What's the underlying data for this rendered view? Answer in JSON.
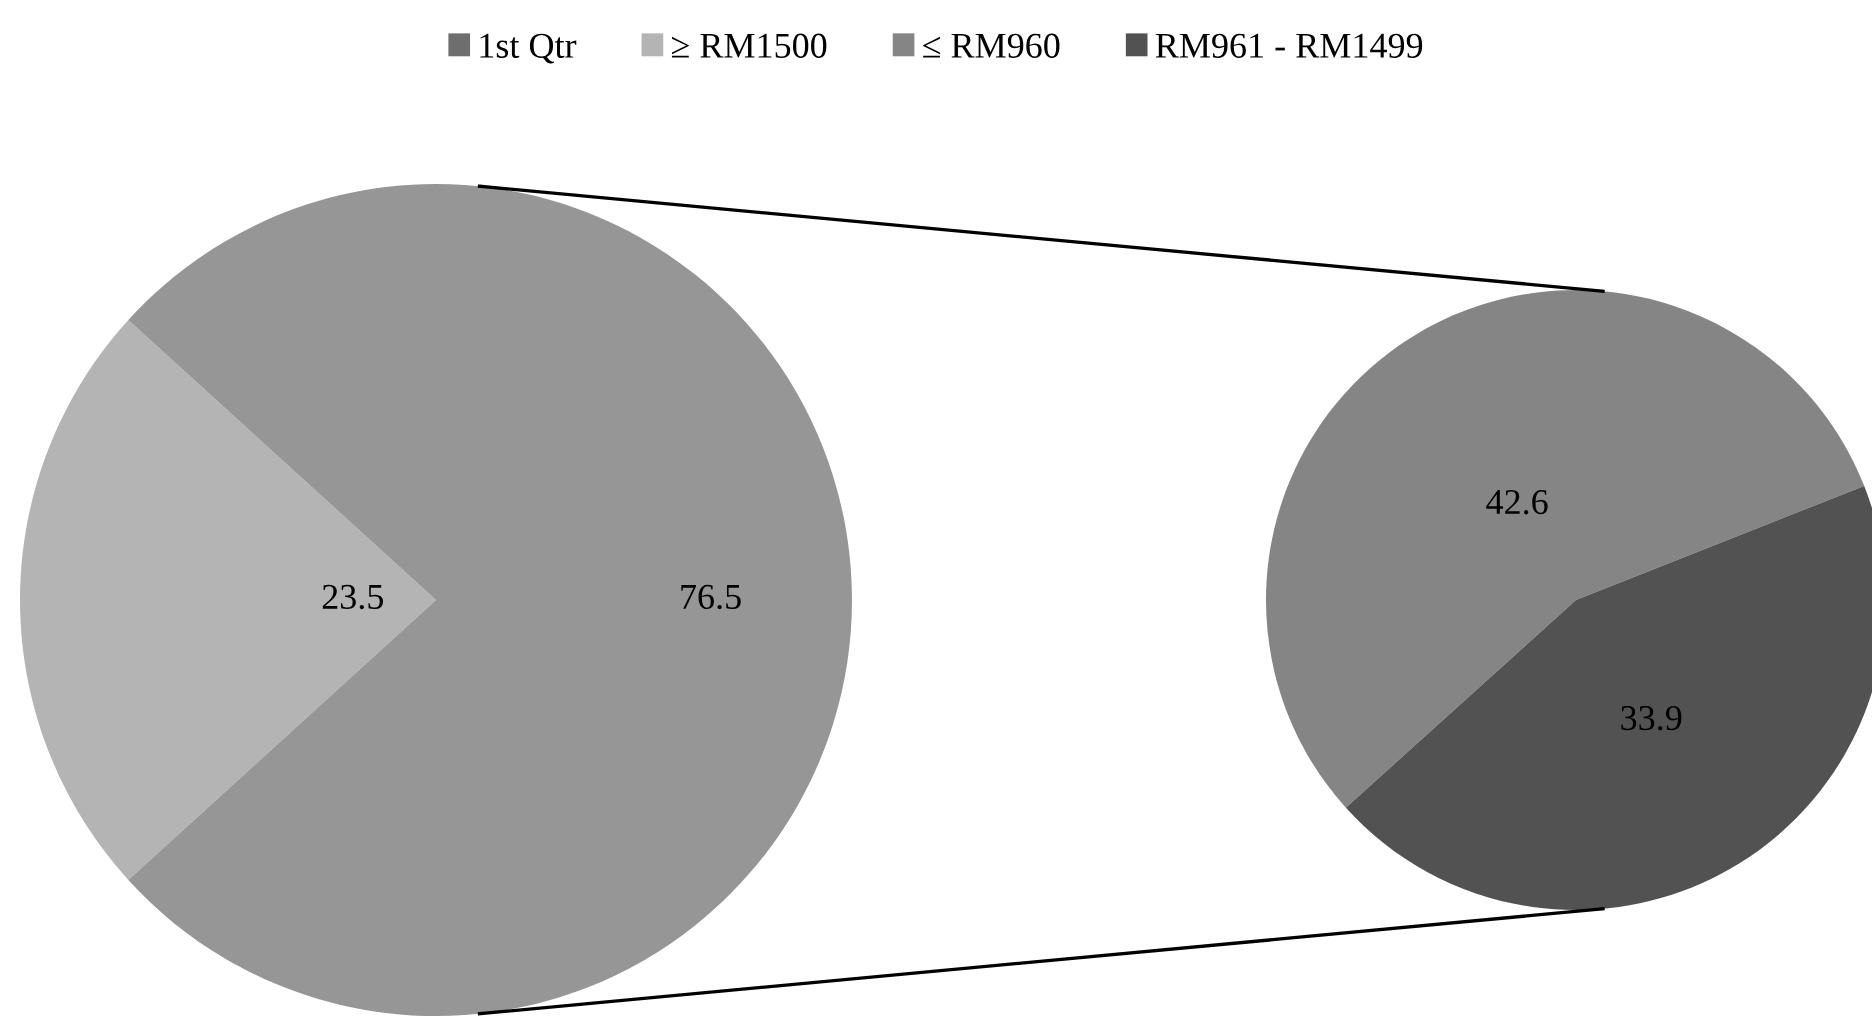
{
  "chart_data": [
    {
      "type": "pie",
      "categories": [
        "1st Qtr",
        "≥ RM1500",
        null
      ],
      "values": [
        0,
        23.5,
        76.5
      ],
      "colors": [
        "#6e6e6e",
        "#b4b4b4",
        "#969696"
      ],
      "value_labels": [
        null,
        "23.5",
        "76.5"
      ],
      "legend": "top"
    },
    {
      "type": "pie",
      "categories": [
        "≤ RM960",
        "RM961 - RM1499"
      ],
      "values": [
        42.6,
        33.9
      ],
      "colors": [
        "#858585",
        "#525252"
      ],
      "value_labels": [
        "42.6",
        "33.9"
      ],
      "legend": "top"
    }
  ]
}
